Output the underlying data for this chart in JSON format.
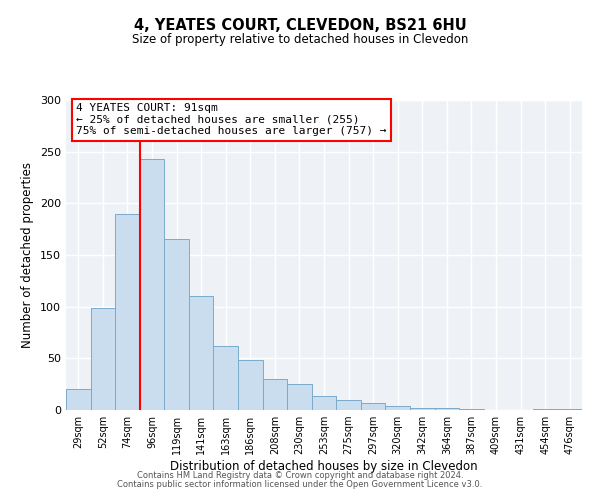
{
  "title": "4, YEATES COURT, CLEVEDON, BS21 6HU",
  "subtitle": "Size of property relative to detached houses in Clevedon",
  "xlabel": "Distribution of detached houses by size in Clevedon",
  "ylabel": "Number of detached properties",
  "bar_color": "#c9ddef",
  "bar_edge_color": "#7aaacb",
  "background_color": "#eef2f7",
  "categories": [
    "29sqm",
    "52sqm",
    "74sqm",
    "96sqm",
    "119sqm",
    "141sqm",
    "163sqm",
    "186sqm",
    "208sqm",
    "230sqm",
    "253sqm",
    "275sqm",
    "297sqm",
    "320sqm",
    "342sqm",
    "364sqm",
    "387sqm",
    "409sqm",
    "431sqm",
    "454sqm",
    "476sqm"
  ],
  "values": [
    20,
    99,
    190,
    243,
    165,
    110,
    62,
    48,
    30,
    25,
    14,
    10,
    7,
    4,
    2,
    2,
    1,
    0,
    0,
    1,
    1
  ],
  "red_line_index": 3,
  "annotation_title": "4 YEATES COURT: 91sqm",
  "annotation_line1": "← 25% of detached houses are smaller (255)",
  "annotation_line2": "75% of semi-detached houses are larger (757) →",
  "ylim": [
    0,
    300
  ],
  "yticks": [
    0,
    50,
    100,
    150,
    200,
    250,
    300
  ],
  "footnote1": "Contains HM Land Registry data © Crown copyright and database right 2024.",
  "footnote2": "Contains public sector information licensed under the Open Government Licence v3.0."
}
